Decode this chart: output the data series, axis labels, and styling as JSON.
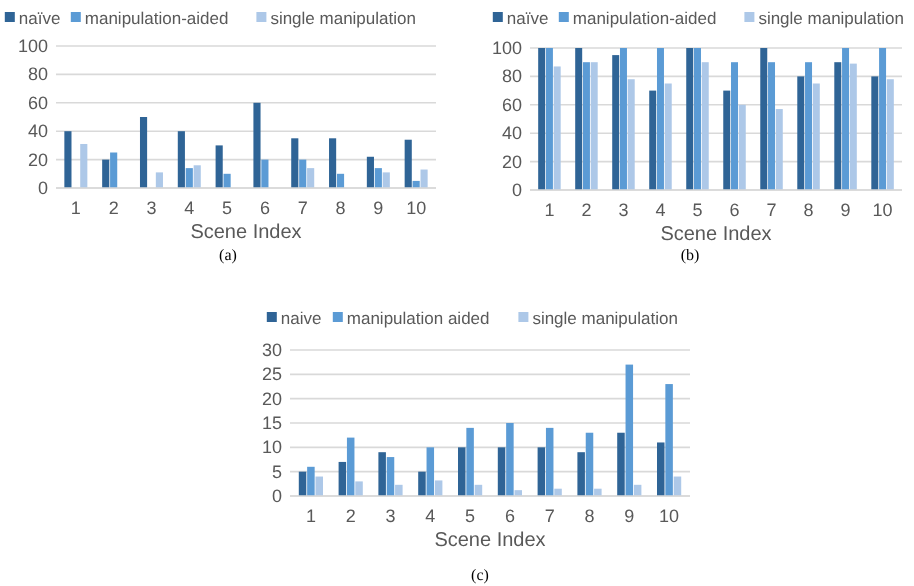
{
  "chart_data": [
    {
      "type": "bar",
      "xlabel": "Scene Index",
      "annotations": [
        "(a)"
      ],
      "categories": [
        "1",
        "2",
        "3",
        "4",
        "5",
        "6",
        "7",
        "8",
        "9",
        "10"
      ],
      "ylim": [
        0,
        100
      ],
      "yticks": [
        0,
        20,
        40,
        60,
        80,
        100
      ],
      "grid": "y",
      "legend": "top",
      "series": [
        {
          "name": "naïve",
          "color": "#2f6496",
          "values": [
            40,
            20,
            50,
            40,
            30,
            60,
            35,
            35,
            22,
            34
          ]
        },
        {
          "name": "manipulation-aided",
          "color": "#5b9bd5",
          "values": [
            0,
            25,
            0,
            14,
            10,
            20,
            20,
            10,
            14,
            5
          ]
        },
        {
          "name": "single manipulation",
          "color": "#adc8e8",
          "values": [
            31,
            0,
            11,
            16,
            0,
            0,
            14,
            0,
            11,
            13
          ]
        }
      ]
    },
    {
      "type": "bar",
      "xlabel": "Scene Index",
      "annotations": [
        "(b)"
      ],
      "categories": [
        "1",
        "2",
        "3",
        "4",
        "5",
        "6",
        "7",
        "8",
        "9",
        "10"
      ],
      "ylim": [
        0,
        100
      ],
      "yticks": [
        0,
        20,
        40,
        60,
        80,
        100
      ],
      "grid": "y",
      "legend": "top",
      "series": [
        {
          "name": "naïve",
          "color": "#2f6496",
          "values": [
            100,
            100,
            95,
            70,
            100,
            70,
            100,
            80,
            90,
            80
          ]
        },
        {
          "name": "manipulation-aided",
          "color": "#5b9bd5",
          "values": [
            100,
            90,
            100,
            100,
            100,
            90,
            90,
            90,
            100,
            100
          ]
        },
        {
          "name": "single manipulation",
          "color": "#adc8e8",
          "values": [
            87,
            90,
            78,
            75,
            90,
            60,
            57,
            75,
            89,
            78
          ]
        }
      ]
    },
    {
      "type": "bar",
      "xlabel": "Scene Index",
      "annotations": [
        "(c)"
      ],
      "categories": [
        "1",
        "2",
        "3",
        "4",
        "5",
        "6",
        "7",
        "8",
        "9",
        "10"
      ],
      "ylim": [
        0,
        30
      ],
      "yticks": [
        0,
        5,
        10,
        15,
        20,
        25,
        30
      ],
      "grid": "y",
      "legend": "top",
      "series": [
        {
          "name": "naive",
          "color": "#2f6496",
          "values": [
            5,
            7,
            9,
            5,
            10,
            10,
            10,
            9,
            13,
            11
          ]
        },
        {
          "name": "manipulation aided",
          "color": "#5b9bd5",
          "values": [
            6,
            12,
            8,
            10,
            14,
            15,
            14,
            13,
            27,
            23
          ]
        },
        {
          "name": "single manipulation",
          "color": "#adc8e8",
          "values": [
            4,
            3,
            2.3,
            3.2,
            2.3,
            1.2,
            1.5,
            1.5,
            2.3,
            4
          ]
        }
      ]
    }
  ]
}
